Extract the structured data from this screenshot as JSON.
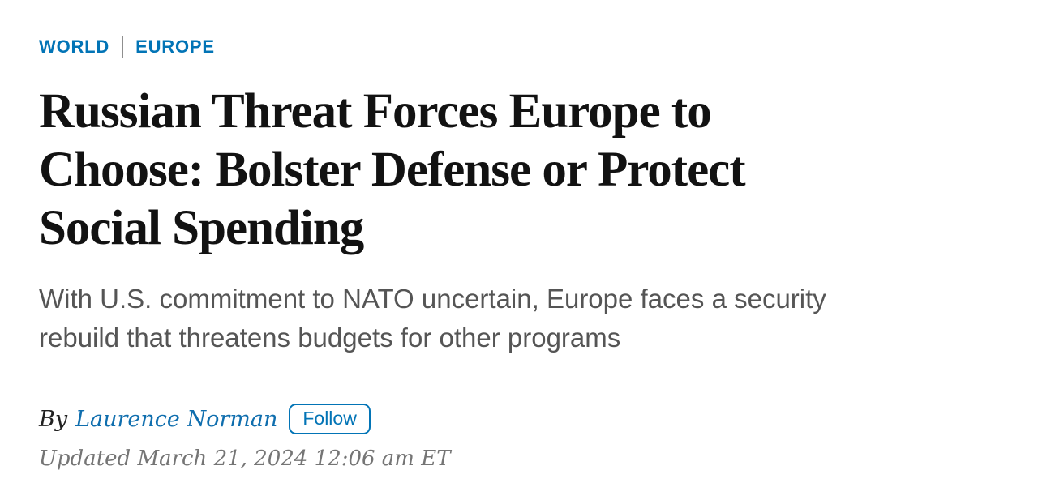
{
  "colors": {
    "link_blue": "#0274b6",
    "headline_black": "#121212",
    "dek_gray": "#555555",
    "timestamp_gray": "#757575"
  },
  "breadcrumb": {
    "section": "WORLD",
    "subsection": "EUROPE"
  },
  "headline": {
    "lines": [
      "Russian Threat Forces Europe to",
      "Choose: Bolster Defense or Protect",
      "Social Spending"
    ]
  },
  "dek": {
    "lines": [
      "With U.S. commitment to NATO uncertain, Europe faces a security",
      "rebuild that threatens budgets for other programs"
    ]
  },
  "byline": {
    "prefix": "By",
    "author": "Laurence Norman",
    "follow_label": "Follow"
  },
  "timestamp": "Updated March 21, 2024 12:06 am ET"
}
